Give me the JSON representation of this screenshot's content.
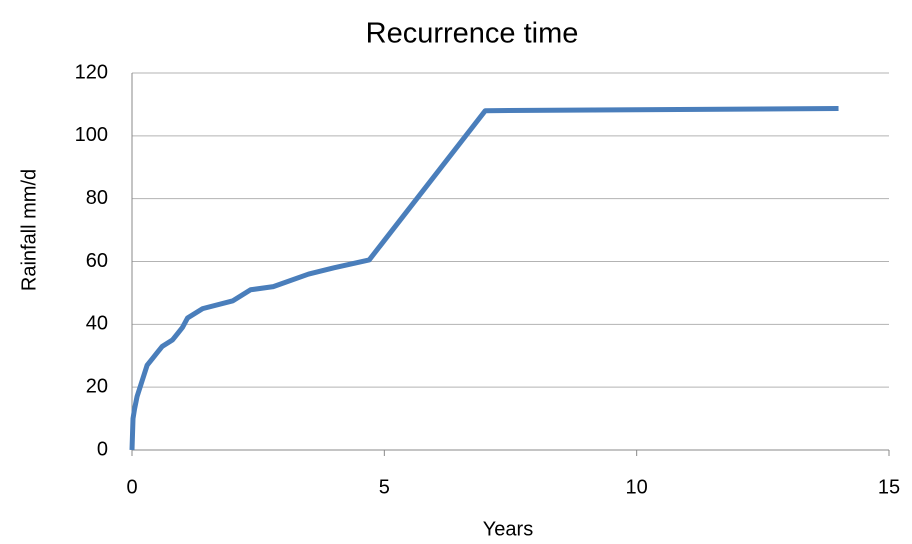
{
  "chart_data": {
    "type": "line",
    "title": "Recurrence time",
    "xlabel": "Years",
    "ylabel": "Rainfall mm/d",
    "x": [
      0,
      0.02,
      0.05,
      0.1,
      0.2,
      0.3,
      0.4,
      0.5,
      0.6,
      0.8,
      0.9,
      1.0,
      1.1,
      1.2,
      1.4,
      2.0,
      2.35,
      2.8,
      3.5,
      4.0,
      4.7,
      7.0,
      10,
      14
    ],
    "series": [
      {
        "name": "Rainfall",
        "color": "#4a7ebb",
        "values": [
          0,
          10,
          13,
          17,
          22,
          27,
          29,
          31,
          33,
          35,
          37,
          39,
          42,
          43,
          45,
          47.5,
          51,
          52,
          56,
          58,
          60.5,
          108,
          108.3,
          108.7
        ]
      }
    ],
    "xlim": [
      0,
      15
    ],
    "xticks": [
      0,
      5,
      10,
      15
    ],
    "ylim": [
      0,
      120
    ],
    "yticks": [
      0,
      20,
      40,
      60,
      80,
      100,
      120
    ],
    "grid": true
  }
}
